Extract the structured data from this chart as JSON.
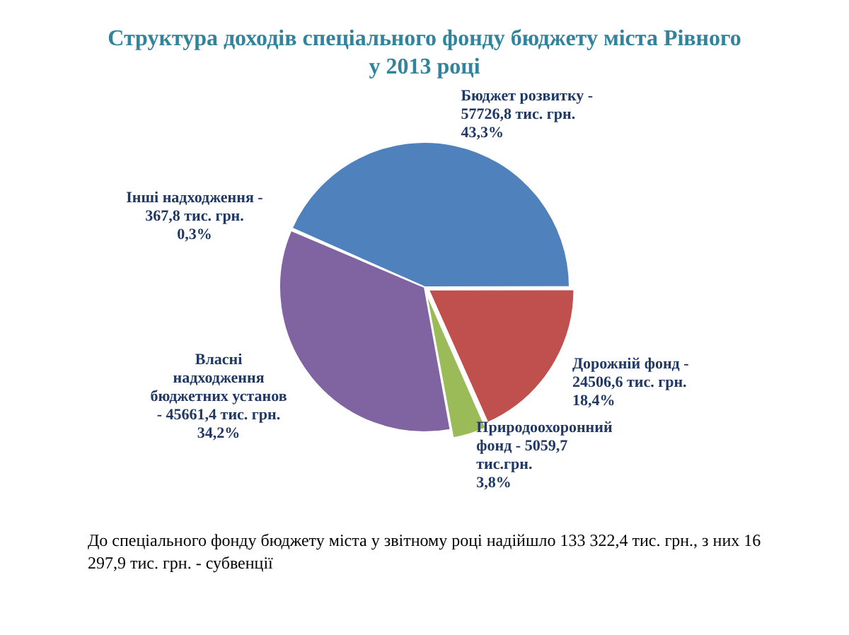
{
  "chart_data": {
    "type": "pie",
    "title": "Структура доходів спеціального фонду бюджету міста Рівного\nу 2013 році",
    "categories": [
      "Бюджет розвитку -",
      "Дорожній фонд -",
      "Природоохоронний\nфонд -",
      "Власні\nнадходження\nбюджетних установ\n-",
      "Інші надходження -"
    ],
    "values": [
      57726.8,
      24506.6,
      5059.7,
      45661.4,
      367.8
    ],
    "value_labels": [
      "\n57726,8 тис. грн.\n43,3%",
      "\n24506,6 тис. грн.\n18,4%",
      "5059,7\nтис.грн.\n3,8%",
      "45661,4 тис. грн.\n34,2%",
      "\n367,8 тис. грн.\n0,3%"
    ],
    "colors": [
      "#4f81bd",
      "#c0504d",
      "#9bbb59",
      "#8064a2",
      "#31859c"
    ],
    "annotations": [
      "До спеціального фонду бюджету міста у звітному році надійшло 133 322,4 тис. грн., з них 16 297,9 тис. грн. - субвенції"
    ]
  }
}
